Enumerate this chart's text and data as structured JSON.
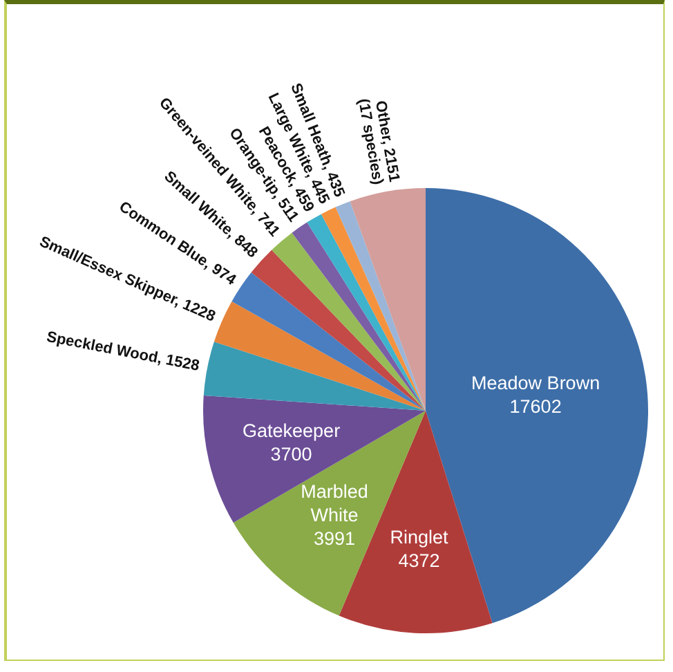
{
  "chart_data": {
    "type": "pie",
    "categories": [
      "Meadow Brown",
      "Ringlet",
      "Marbled White",
      "Gatekeeper",
      "Speckled Wood",
      "Small/Essex Skipper",
      "Common Blue",
      "Small White",
      "Green-veined White",
      "Orange-tip",
      "Peacock",
      "Large White",
      "Small Heath",
      "Other"
    ],
    "values": [
      17602,
      4372,
      3991,
      3700,
      1528,
      1228,
      974,
      848,
      741,
      511,
      459,
      445,
      435,
      2151
    ],
    "colors": [
      "#3d6ea8",
      "#b03c3a",
      "#8aab47",
      "#6b4d96",
      "#3a9cb3",
      "#e6843a",
      "#4a7ec0",
      "#c34a47",
      "#97bb57",
      "#7a5ea6",
      "#3fb2cc",
      "#f5923e",
      "#9ab5d8",
      "#d39e9b"
    ],
    "value_labels": [
      "17602",
      "4372",
      "3991",
      "3700",
      ", 1528",
      ", 1228",
      ", 974",
      ", 848",
      ", 741",
      ", 511",
      ", 459",
      ", 445",
      ", 435",
      ", 2151"
    ],
    "annotations": [
      {
        "text": "(17 species)",
        "x": "Other"
      }
    ]
  }
}
